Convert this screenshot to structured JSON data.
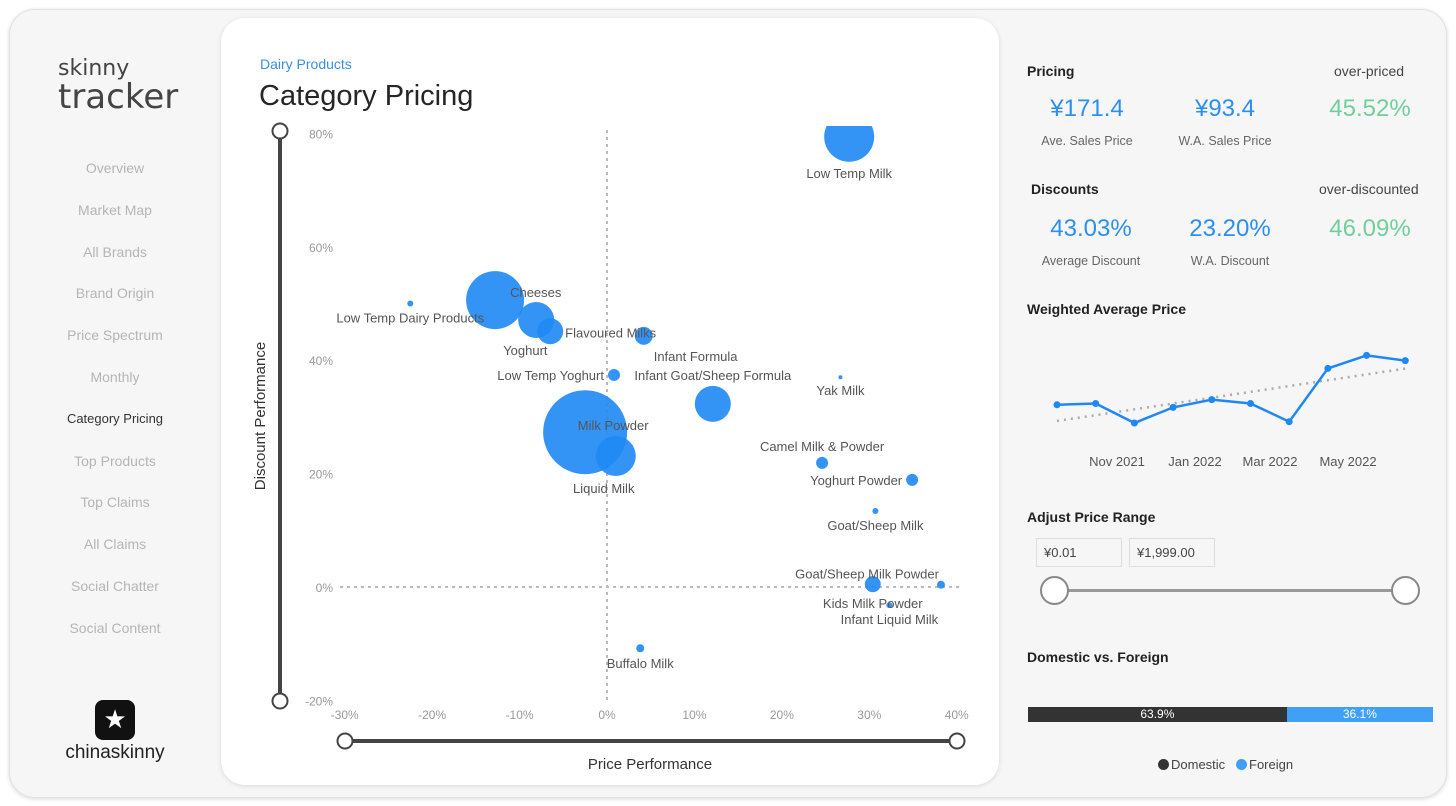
{
  "logo": {
    "line1": "skinny",
    "line2": "tracker"
  },
  "nav": [
    "Overview",
    "Market Map",
    "All Brands",
    "Brand Origin",
    "Price Spectrum",
    "Monthly",
    "Category Pricing",
    "Top Products",
    "Top Claims",
    "All Claims",
    "Social Chatter",
    "Social Content"
  ],
  "active_nav": "Category Pricing",
  "brand": {
    "name": "chinaskinny",
    "icon": "star-speech-bubble-icon"
  },
  "breadcrumb": "Dairy Products",
  "page_title": "Category Pricing",
  "chart_data": {
    "type": "scatter",
    "title": "Category Pricing",
    "xlabel": "Price Performance",
    "ylabel": "Discount Performance",
    "xlim": [
      -30,
      40
    ],
    "ylim": [
      -20,
      80
    ],
    "xticks": [
      "-30%",
      "-20%",
      "-10%",
      "0%",
      "10%",
      "20%",
      "30%",
      "40%"
    ],
    "yticks": [
      "80%",
      "60%",
      "40%",
      "20%",
      "0%",
      "-20%"
    ],
    "points": [
      {
        "label": "Low Temp Milk",
        "x": 27.7,
        "y": 79.4,
        "size": 25,
        "label_pos": "below"
      },
      {
        "label": "Low Temp Dairy Products",
        "x": -22.5,
        "y": 50,
        "size": 3,
        "label_pos": "below"
      },
      {
        "label": "Cheeses",
        "x": -12.8,
        "y": 50.6,
        "size": 29,
        "label_pos": "right"
      },
      {
        "label": "Yoghurt",
        "x": -8.1,
        "y": 47.1,
        "size": 18,
        "label_pos": "below-left"
      },
      {
        "label": "Flavoured Milks",
        "x": -6.5,
        "y": 45.1,
        "size": 13,
        "label_pos": "right"
      },
      {
        "label": "Infant Formula",
        "x": 4.2,
        "y": 44.3,
        "size": 9,
        "label_pos": "below-right"
      },
      {
        "label": "Low Temp Yoghurt",
        "x": 0.8,
        "y": 37.4,
        "size": 6,
        "label_pos": "left"
      },
      {
        "label": "Infant Goat/Sheep Formula",
        "x": 12.1,
        "y": 32.3,
        "size": 18,
        "label_pos": "above"
      },
      {
        "label": "Yak Milk",
        "x": 26.7,
        "y": 37,
        "size": 2,
        "label_pos": "below"
      },
      {
        "label": "Milk Powder",
        "x": -2.5,
        "y": 27.3,
        "size": 42,
        "label_pos": "center"
      },
      {
        "label": "Liquid Milk",
        "x": 1.0,
        "y": 23.1,
        "size": 20,
        "label_pos": "below-left"
      },
      {
        "label": "Camel Milk & Powder",
        "x": 24.6,
        "y": 21.9,
        "size": 6,
        "label_pos": "above"
      },
      {
        "label": "Yoghurt Powder",
        "x": 34.9,
        "y": 18.9,
        "size": 6,
        "label_pos": "left"
      },
      {
        "label": "Goat/Sheep Milk",
        "x": 30.7,
        "y": 13.4,
        "size": 3,
        "label_pos": "below"
      },
      {
        "label": "Kids Milk Powder",
        "x": 30.4,
        "y": 0.5,
        "size": 8,
        "label_pos": "below"
      },
      {
        "label": "Goat/Sheep Milk Powder",
        "x": 38.2,
        "y": 0.4,
        "size": 4,
        "label_pos": "above-left"
      },
      {
        "label": "Infant Liquid Milk",
        "x": 32.3,
        "y": -3.2,
        "size": 3,
        "label_pos": "below"
      },
      {
        "label": "Buffalo Milk",
        "x": 3.8,
        "y": -10.8,
        "size": 4,
        "label_pos": "below"
      }
    ]
  },
  "pricing": {
    "title": "Pricing",
    "over_label": "over-priced",
    "ave_value": "¥171.4",
    "ave_label": "Ave. Sales Price",
    "wa_value": "¥93.4",
    "wa_label": "W.A. Sales Price",
    "over_value": "45.52%"
  },
  "discounts": {
    "title": "Discounts",
    "over_label": "over-discounted",
    "ave_value": "43.03%",
    "ave_label": "Average Discount",
    "wa_value": "23.20%",
    "wa_label": "W.A. Discount",
    "over_value": "46.09%"
  },
  "wap": {
    "title": "Weighted Average Price",
    "xticks": [
      "Nov 2021",
      "Jan 2022",
      "Mar 2022",
      "May 2022"
    ],
    "values": [
      93,
      93.5,
      86,
      92,
      95,
      93.5,
      86.5,
      107,
      112,
      110
    ]
  },
  "price_range": {
    "title": "Adjust Price Range",
    "min": "¥0.01",
    "max": "¥1,999.00"
  },
  "dvf": {
    "title": "Domestic vs. Foreign",
    "domestic_pct": 63.9,
    "foreign_pct": 36.1,
    "domestic_label": "63.9%",
    "foreign_label": "36.1%",
    "legend_domestic": "Domestic",
    "legend_foreign": "Foreign",
    "domestic_color": "#333333",
    "foreign_color": "#3fa0f5"
  },
  "colors": {
    "accent": "#2a8ff0",
    "bubble": "#1e88f5",
    "positive": "#6fd09a"
  }
}
